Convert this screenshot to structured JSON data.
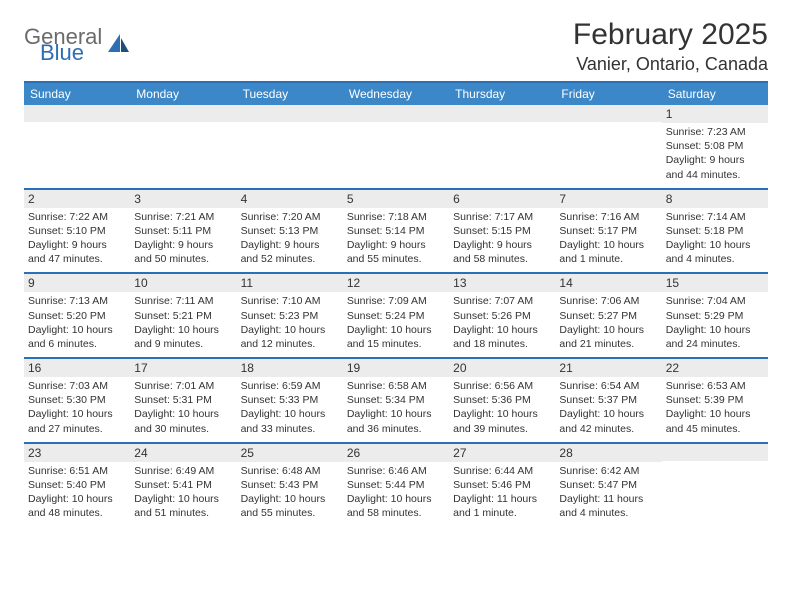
{
  "colors": {
    "brand_blue": "#2d6fb5",
    "header_blue": "#3b87c8",
    "logo_gray": "#6b6b6b",
    "daynum_bg": "#ececec",
    "text": "#333333",
    "bg": "#ffffff"
  },
  "logo": {
    "general": "General",
    "blue": "Blue"
  },
  "title": "February 2025",
  "location": "Vanier, Ontario, Canada",
  "weekdays": [
    "Sunday",
    "Monday",
    "Tuesday",
    "Wednesday",
    "Thursday",
    "Friday",
    "Saturday"
  ],
  "weeks": [
    [
      {
        "num": "",
        "sunrise": "",
        "sunset": "",
        "daylight": ""
      },
      {
        "num": "",
        "sunrise": "",
        "sunset": "",
        "daylight": ""
      },
      {
        "num": "",
        "sunrise": "",
        "sunset": "",
        "daylight": ""
      },
      {
        "num": "",
        "sunrise": "",
        "sunset": "",
        "daylight": ""
      },
      {
        "num": "",
        "sunrise": "",
        "sunset": "",
        "daylight": ""
      },
      {
        "num": "",
        "sunrise": "",
        "sunset": "",
        "daylight": ""
      },
      {
        "num": "1",
        "sunrise": "Sunrise: 7:23 AM",
        "sunset": "Sunset: 5:08 PM",
        "daylight": "Daylight: 9 hours and 44 minutes."
      }
    ],
    [
      {
        "num": "2",
        "sunrise": "Sunrise: 7:22 AM",
        "sunset": "Sunset: 5:10 PM",
        "daylight": "Daylight: 9 hours and 47 minutes."
      },
      {
        "num": "3",
        "sunrise": "Sunrise: 7:21 AM",
        "sunset": "Sunset: 5:11 PM",
        "daylight": "Daylight: 9 hours and 50 minutes."
      },
      {
        "num": "4",
        "sunrise": "Sunrise: 7:20 AM",
        "sunset": "Sunset: 5:13 PM",
        "daylight": "Daylight: 9 hours and 52 minutes."
      },
      {
        "num": "5",
        "sunrise": "Sunrise: 7:18 AM",
        "sunset": "Sunset: 5:14 PM",
        "daylight": "Daylight: 9 hours and 55 minutes."
      },
      {
        "num": "6",
        "sunrise": "Sunrise: 7:17 AM",
        "sunset": "Sunset: 5:15 PM",
        "daylight": "Daylight: 9 hours and 58 minutes."
      },
      {
        "num": "7",
        "sunrise": "Sunrise: 7:16 AM",
        "sunset": "Sunset: 5:17 PM",
        "daylight": "Daylight: 10 hours and 1 minute."
      },
      {
        "num": "8",
        "sunrise": "Sunrise: 7:14 AM",
        "sunset": "Sunset: 5:18 PM",
        "daylight": "Daylight: 10 hours and 4 minutes."
      }
    ],
    [
      {
        "num": "9",
        "sunrise": "Sunrise: 7:13 AM",
        "sunset": "Sunset: 5:20 PM",
        "daylight": "Daylight: 10 hours and 6 minutes."
      },
      {
        "num": "10",
        "sunrise": "Sunrise: 7:11 AM",
        "sunset": "Sunset: 5:21 PM",
        "daylight": "Daylight: 10 hours and 9 minutes."
      },
      {
        "num": "11",
        "sunrise": "Sunrise: 7:10 AM",
        "sunset": "Sunset: 5:23 PM",
        "daylight": "Daylight: 10 hours and 12 minutes."
      },
      {
        "num": "12",
        "sunrise": "Sunrise: 7:09 AM",
        "sunset": "Sunset: 5:24 PM",
        "daylight": "Daylight: 10 hours and 15 minutes."
      },
      {
        "num": "13",
        "sunrise": "Sunrise: 7:07 AM",
        "sunset": "Sunset: 5:26 PM",
        "daylight": "Daylight: 10 hours and 18 minutes."
      },
      {
        "num": "14",
        "sunrise": "Sunrise: 7:06 AM",
        "sunset": "Sunset: 5:27 PM",
        "daylight": "Daylight: 10 hours and 21 minutes."
      },
      {
        "num": "15",
        "sunrise": "Sunrise: 7:04 AM",
        "sunset": "Sunset: 5:29 PM",
        "daylight": "Daylight: 10 hours and 24 minutes."
      }
    ],
    [
      {
        "num": "16",
        "sunrise": "Sunrise: 7:03 AM",
        "sunset": "Sunset: 5:30 PM",
        "daylight": "Daylight: 10 hours and 27 minutes."
      },
      {
        "num": "17",
        "sunrise": "Sunrise: 7:01 AM",
        "sunset": "Sunset: 5:31 PM",
        "daylight": "Daylight: 10 hours and 30 minutes."
      },
      {
        "num": "18",
        "sunrise": "Sunrise: 6:59 AM",
        "sunset": "Sunset: 5:33 PM",
        "daylight": "Daylight: 10 hours and 33 minutes."
      },
      {
        "num": "19",
        "sunrise": "Sunrise: 6:58 AM",
        "sunset": "Sunset: 5:34 PM",
        "daylight": "Daylight: 10 hours and 36 minutes."
      },
      {
        "num": "20",
        "sunrise": "Sunrise: 6:56 AM",
        "sunset": "Sunset: 5:36 PM",
        "daylight": "Daylight: 10 hours and 39 minutes."
      },
      {
        "num": "21",
        "sunrise": "Sunrise: 6:54 AM",
        "sunset": "Sunset: 5:37 PM",
        "daylight": "Daylight: 10 hours and 42 minutes."
      },
      {
        "num": "22",
        "sunrise": "Sunrise: 6:53 AM",
        "sunset": "Sunset: 5:39 PM",
        "daylight": "Daylight: 10 hours and 45 minutes."
      }
    ],
    [
      {
        "num": "23",
        "sunrise": "Sunrise: 6:51 AM",
        "sunset": "Sunset: 5:40 PM",
        "daylight": "Daylight: 10 hours and 48 minutes."
      },
      {
        "num": "24",
        "sunrise": "Sunrise: 6:49 AM",
        "sunset": "Sunset: 5:41 PM",
        "daylight": "Daylight: 10 hours and 51 minutes."
      },
      {
        "num": "25",
        "sunrise": "Sunrise: 6:48 AM",
        "sunset": "Sunset: 5:43 PM",
        "daylight": "Daylight: 10 hours and 55 minutes."
      },
      {
        "num": "26",
        "sunrise": "Sunrise: 6:46 AM",
        "sunset": "Sunset: 5:44 PM",
        "daylight": "Daylight: 10 hours and 58 minutes."
      },
      {
        "num": "27",
        "sunrise": "Sunrise: 6:44 AM",
        "sunset": "Sunset: 5:46 PM",
        "daylight": "Daylight: 11 hours and 1 minute."
      },
      {
        "num": "28",
        "sunrise": "Sunrise: 6:42 AM",
        "sunset": "Sunset: 5:47 PM",
        "daylight": "Daylight: 11 hours and 4 minutes."
      },
      {
        "num": "",
        "sunrise": "",
        "sunset": "",
        "daylight": ""
      }
    ]
  ]
}
